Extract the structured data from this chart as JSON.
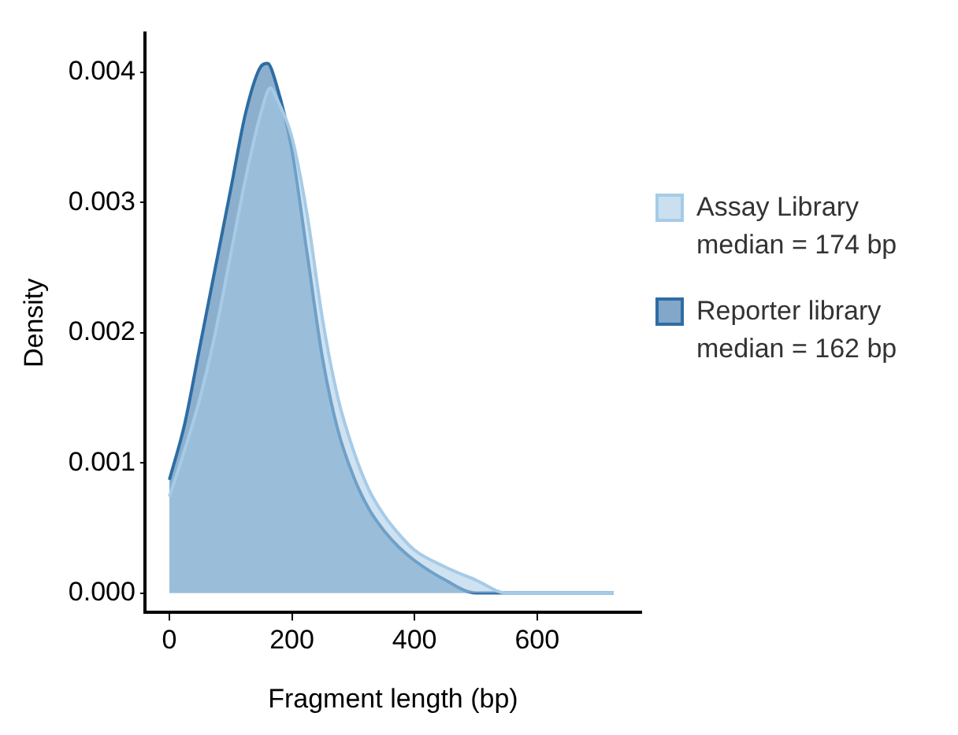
{
  "chart_data": {
    "type": "area",
    "xlabel": "Fragment length (bp)",
    "ylabel": "Density",
    "xlim": [
      -40,
      770
    ],
    "xticks": [
      0,
      200,
      400,
      600
    ],
    "ylim": [
      -0.00015,
      0.0043
    ],
    "yticks": [
      {
        "value": 0,
        "label": "0.000"
      },
      0.001,
      0.002,
      0.003,
      0.004
    ],
    "grid": false,
    "legend": "right",
    "marker": "none",
    "line_style": "solid",
    "series": [
      {
        "name": "Assay Library\nmedian = 174 bp",
        "color": "#a6cbe6",
        "x": [
          0,
          25,
          50,
          75,
          100,
          125,
          150,
          165,
          175,
          200,
          225,
          250,
          275,
          300,
          325,
          350,
          375,
          400,
          450,
          500,
          550,
          600,
          650,
          725
        ],
        "values": [
          0.00074,
          0.0011,
          0.0015,
          0.002,
          0.0026,
          0.0032,
          0.0037,
          0.00388,
          0.0038,
          0.0035,
          0.0029,
          0.0021,
          0.0015,
          0.0011,
          0.0008,
          0.0006,
          0.00045,
          0.00033,
          0.0002,
          0.0001,
          0,
          0,
          0,
          0
        ]
      },
      {
        "name": "Reporter library\nmedian = 162 bp",
        "color": "#2e6da4",
        "x": [
          0,
          25,
          50,
          75,
          100,
          125,
          150,
          160,
          175,
          200,
          225,
          250,
          275,
          300,
          325,
          350,
          375,
          400,
          450,
          500,
          550,
          600,
          650,
          725
        ],
        "values": [
          0.00087,
          0.0013,
          0.0019,
          0.0025,
          0.0031,
          0.0037,
          0.00405,
          0.00407,
          0.0039,
          0.0034,
          0.0026,
          0.0018,
          0.00125,
          0.0009,
          0.00065,
          0.00048,
          0.00035,
          0.00025,
          0.0001,
          0,
          0,
          0,
          0,
          0
        ]
      }
    ]
  }
}
